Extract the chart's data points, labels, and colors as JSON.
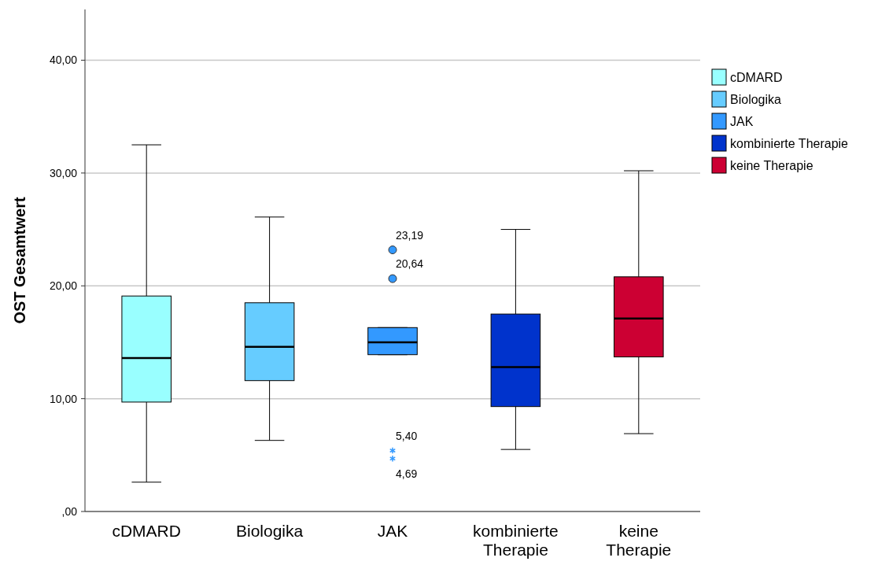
{
  "chart_data": {
    "type": "box",
    "ylabel": "OST Gesamtwert",
    "categories": [
      "cDMARD",
      "Biologika",
      "JAK",
      "kombinierte Therapie",
      "keine Therapie"
    ],
    "series": [
      {
        "name": "cDMARD",
        "color": "#99ffff",
        "boxes": [
          {
            "low": 2.6,
            "q1": 9.7,
            "median": 13.6,
            "q3": 19.1,
            "high": 32.5
          },
          null,
          null,
          null,
          null
        ]
      },
      {
        "name": "Biologika",
        "color": "#66ccff",
        "boxes": [
          null,
          {
            "low": 6.3,
            "q1": 11.6,
            "median": 14.6,
            "q3": 18.5,
            "high": 26.1
          },
          null,
          null,
          null
        ]
      },
      {
        "name": "JAK",
        "color": "#3399ff",
        "boxes": [
          null,
          null,
          {
            "low": 13.9,
            "q1": 13.9,
            "median": 15.0,
            "q3": 16.3,
            "high": 16.3,
            "outliers": [
              23.19,
              20.64,
              5.4,
              4.69
            ]
          },
          null,
          null
        ]
      },
      {
        "name": "kombinierte Therapie",
        "color": "#0033cc",
        "boxes": [
          null,
          null,
          null,
          {
            "low": 5.5,
            "q1": 9.3,
            "median": 12.8,
            "q3": 17.5,
            "high": 25.0
          },
          null
        ]
      },
      {
        "name": "keine Therapie",
        "color": "#cc0033",
        "boxes": [
          null,
          null,
          null,
          null,
          {
            "low": 6.9,
            "q1": 13.7,
            "median": 17.1,
            "q3": 20.8,
            "high": 30.2
          }
        ]
      }
    ],
    "annotations": [
      "23,19",
      "20,64",
      "5,40",
      "4,69"
    ],
    "ylim": [
      0,
      44.5
    ],
    "yticks": [
      {
        "value": 0,
        "label": ",00"
      },
      {
        "value": 10,
        "label": "10,00"
      },
      {
        "value": 20,
        "label": "20,00"
      },
      {
        "value": 30,
        "label": "30,00"
      },
      {
        "value": 40,
        "label": "40,00"
      }
    ],
    "grid": "y",
    "legend": "right"
  }
}
